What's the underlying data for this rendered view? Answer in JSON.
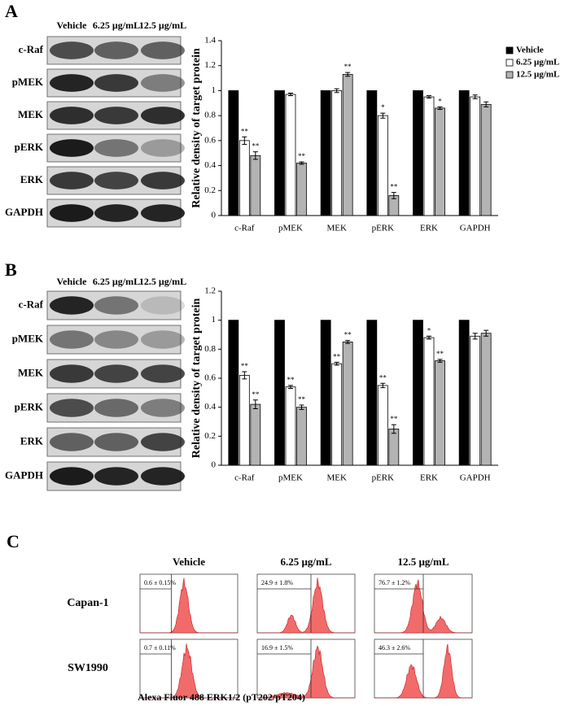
{
  "panel_labels": [
    "A",
    "B",
    "C"
  ],
  "blots": [
    {
      "lanes": [
        "Vehicle",
        "6.25 µg/mL",
        "12.5 µg/mL"
      ],
      "rows": [
        "c-Raf",
        "pMEK",
        "MEK",
        "pERK",
        "ERK",
        "GAPDH"
      ]
    },
    {
      "lanes": [
        "Vehicle",
        "6.25 µg/mL",
        "12.5 µg/mL"
      ],
      "rows": [
        "c-Raf",
        "pMEK",
        "MEK",
        "pERK",
        "ERK",
        "GAPDH"
      ]
    }
  ],
  "chart_data": [
    {
      "type": "bar",
      "y_label": "Relative density of target protein",
      "categories": [
        "c-Raf",
        "pMEK",
        "MEK",
        "pERK",
        "ERK",
        "GAPDH"
      ],
      "ylim": [
        0,
        1.4
      ],
      "yticks": [
        0,
        0.2,
        0.4,
        0.6,
        0.8,
        1,
        1.2,
        1.4
      ],
      "legend": "right",
      "series": [
        {
          "name": "Vehicle",
          "color": "#000000",
          "values": [
            1,
            1,
            1,
            1,
            1,
            1
          ]
        },
        {
          "name": "6.25 µg/mL",
          "color": "#ffffff",
          "values": [
            0.6,
            0.97,
            1.0,
            0.8,
            0.95,
            0.95
          ],
          "errors": [
            0.03,
            0.01,
            0.015,
            0.02,
            0.01,
            0.015
          ],
          "markers": [
            "**",
            null,
            null,
            "*",
            null,
            null
          ]
        },
        {
          "name": "12.5 µg/mL",
          "color": "#b3b3b3",
          "values": [
            0.48,
            0.42,
            1.13,
            0.16,
            0.86,
            0.89
          ],
          "errors": [
            0.03,
            0.01,
            0.015,
            0.025,
            0.01,
            0.02
          ],
          "markers": [
            "**",
            "**",
            "**",
            "**",
            "*",
            null
          ]
        }
      ]
    },
    {
      "type": "bar",
      "y_label": "Relative density of target protein",
      "categories": [
        "c-Raf",
        "pMEK",
        "MEK",
        "pERK",
        "ERK",
        "GAPDH"
      ],
      "ylim": [
        0,
        1.2
      ],
      "yticks": [
        0,
        0.2,
        0.4,
        0.6,
        0.8,
        1,
        1.2
      ],
      "series": [
        {
          "color": "#000000",
          "values": [
            1,
            1,
            1,
            1,
            1,
            1
          ]
        },
        {
          "color": "#ffffff",
          "values": [
            0.62,
            0.54,
            0.7,
            0.55,
            0.88,
            0.89
          ],
          "errors": [
            0.025,
            0.01,
            0.01,
            0.015,
            0.01,
            0.02
          ],
          "markers": [
            "**",
            "**",
            "**",
            "**",
            "*",
            null
          ]
        },
        {
          "color": "#b3b3b3",
          "values": [
            0.42,
            0.4,
            0.85,
            0.25,
            0.72,
            0.91
          ],
          "errors": [
            0.03,
            0.015,
            0.01,
            0.03,
            0.01,
            0.02
          ],
          "markers": [
            "**",
            "**",
            "**",
            "**",
            "**",
            null
          ]
        }
      ]
    }
  ],
  "flow": {
    "columns": [
      "Vehicle",
      "6.25 µg/mL",
      "12.5 µg/mL"
    ],
    "rows": [
      "Capan-1",
      "SW1990"
    ],
    "gates": [
      [
        "0.6 ± 0.15%",
        "24.9 ± 1.8%",
        "76.7 ± 1.2%"
      ],
      [
        "0.7 ± 0.11%",
        "16.9 ± 1.5%",
        "46.3 ± 2.6%"
      ]
    ],
    "x_label": "Alexa Fluor 488 ERK1/2 (pT202/pT204)"
  }
}
